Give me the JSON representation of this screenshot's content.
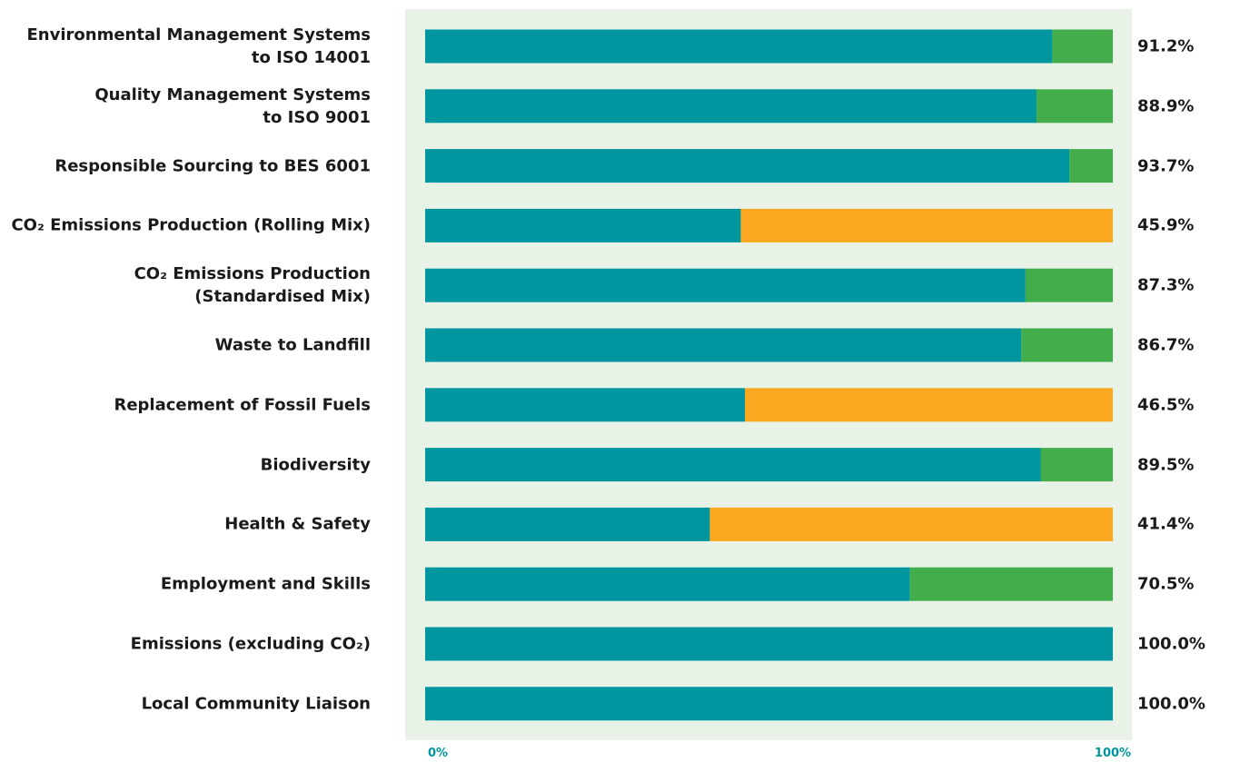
{
  "chart_data": {
    "type": "stacked_bar_horizontal",
    "categories": [
      "Environmental Management Systems\nto ISO 14001",
      "Quality Management Systems\nto ISO 9001",
      "Responsible Sourcing to BES 6001",
      "CO₂ Emissions Production (Rolling Mix)",
      "CO₂ Emissions Production\n(Standardised Mix)",
      "Waste to Landfill",
      "Replacement of Fossil Fuels",
      "Biodiversity",
      "Health & Safety",
      "Employment and Skills",
      "Emissions (excluding CO₂)",
      "Local Community Liaison"
    ],
    "series": [
      {
        "color": "#0096a0",
        "values": [
          91.2,
          88.9,
          93.7,
          45.9,
          87.3,
          86.7,
          46.5,
          89.5,
          41.4,
          70.5,
          100,
          100
        ],
        "value_labels": [
          "91.2%",
          "88.9%",
          "93.7%",
          "45.9%",
          "87.3%",
          "86.7%",
          "46.5%",
          "89.5%",
          "41.4%",
          "70.5%",
          "100.0%",
          "100.0%"
        ]
      },
      {
        "color": "#43ad4b",
        "values": [
          8.8,
          11.1,
          6.3,
          null,
          12.7,
          13.3,
          null,
          10.5,
          null,
          29.5,
          null,
          null
        ]
      },
      {
        "color": "#f9a81f",
        "values": [
          null,
          null,
          null,
          54.1,
          null,
          null,
          53.5,
          null,
          58.6,
          null,
          null,
          null
        ]
      }
    ],
    "xlim": [
      0,
      100
    ],
    "xticks": [
      {
        "value": 0,
        "label": "0%"
      },
      {
        "value": 100,
        "label": "100%"
      }
    ],
    "background": "#e9f2e6"
  }
}
